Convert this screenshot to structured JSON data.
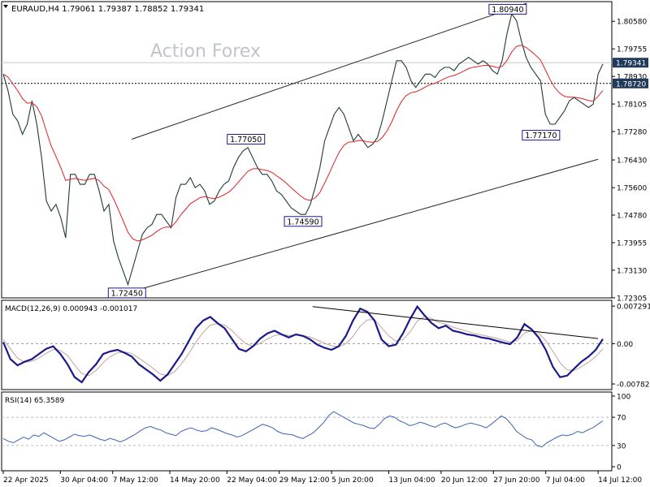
{
  "chart_data": {
    "type": "line",
    "symbol_line": "EURAUD,H4  1.79061 1.79387 1.78852 1.79341",
    "watermark": "Action Forex",
    "colors": {
      "price": "#1f3a3a",
      "ema": "#e02020",
      "macd": "#1a1a8c",
      "signal": "#c8a0a0",
      "rsi": "#3b62b5",
      "label_border": "#1a1a8c",
      "tag_bg": "#1f3a5a",
      "channel": "#222222"
    },
    "price_panel": {
      "ylim": [
        1.7235,
        1.8112
      ],
      "y_ticks": [
        "1.80580",
        "1.79755",
        "1.78930",
        "1.78105",
        "1.77280",
        "1.76430",
        "1.75600",
        "1.74780",
        "1.73955",
        "1.73130",
        "1.72305"
      ],
      "last_price_tag": "1.79341",
      "last_price": 1.79341,
      "reference_level_tag": "1.78720",
      "reference_level": 1.7872,
      "annotations": [
        {
          "label": "1.72450",
          "value": 1.7245,
          "bar": 26
        },
        {
          "label": "1.77050",
          "value": 1.7705,
          "bar": 51
        },
        {
          "label": "1.74590",
          "value": 1.7459,
          "bar": 63
        },
        {
          "label": "1.80940",
          "value": 1.8094,
          "bar": 106
        },
        {
          "label": "1.77170",
          "value": 1.7717,
          "bar": 113
        }
      ],
      "channel_lines": [
        {
          "from": [
            26,
            1.7245
          ],
          "to": [
            125,
            1.7645
          ]
        },
        {
          "from": [
            27,
            1.7705
          ],
          "to": [
            110,
            1.8112
          ]
        }
      ],
      "closes_sampled": [
        1.79,
        1.785,
        1.778,
        1.776,
        1.772,
        1.775,
        1.782,
        1.775,
        1.765,
        1.752,
        1.749,
        1.751,
        1.747,
        1.741,
        1.76,
        1.76,
        1.757,
        1.757,
        1.76,
        1.76,
        1.755,
        1.749,
        1.751,
        1.74,
        1.735,
        1.731,
        1.727,
        1.732,
        1.737,
        1.742,
        1.744,
        1.745,
        1.748,
        1.748,
        1.746,
        1.744,
        1.753,
        1.757,
        1.757,
        1.759,
        1.756,
        1.757,
        1.755,
        1.751,
        1.752,
        1.755,
        1.757,
        1.758,
        1.762,
        1.765,
        1.767,
        1.768,
        1.765,
        1.762,
        1.76,
        1.76,
        1.758,
        1.755,
        1.754,
        1.752,
        1.75,
        1.749,
        1.748,
        1.748,
        1.751,
        1.756,
        1.762,
        1.77,
        1.774,
        1.778,
        1.78,
        1.778,
        1.774,
        1.77,
        1.772,
        1.77,
        1.768,
        1.769,
        1.771,
        1.776,
        1.782,
        1.788,
        1.794,
        1.794,
        1.792,
        1.788,
        1.786,
        1.788,
        1.79,
        1.79,
        1.789,
        1.791,
        1.792,
        1.792,
        1.791,
        1.793,
        1.794,
        1.795,
        1.794,
        1.793,
        1.794,
        1.793,
        1.791,
        1.79,
        1.794,
        1.802,
        1.808,
        1.806,
        1.8,
        1.795,
        1.792,
        1.79,
        1.788,
        1.778,
        1.775,
        1.775,
        1.777,
        1.779,
        1.782,
        1.783,
        1.782,
        1.781,
        1.78,
        1.781,
        1.79,
        1.793
      ]
    },
    "macd_panel": {
      "label": "MACD(12,26,9) 0.000943 -0.001017",
      "ylim": [
        -0.0086,
        0.0081
      ],
      "y_ticks": [
        "0.007291",
        "0.00",
        "-0.00782"
      ],
      "y_tick_values": [
        0.007291,
        0.0,
        -0.00782
      ],
      "macd_sampled": [
        0.0003,
        -0.003,
        -0.0042,
        -0.0035,
        -0.003,
        -0.002,
        -0.001,
        -0.0005,
        -0.002,
        -0.004,
        -0.0065,
        -0.0075,
        -0.0055,
        -0.004,
        -0.002,
        -0.0015,
        -0.0012,
        -0.0018,
        -0.0025,
        -0.004,
        -0.005,
        -0.006,
        -0.0072,
        -0.006,
        -0.004,
        -0.002,
        0.0005,
        0.003,
        0.0045,
        0.0052,
        0.004,
        0.003,
        0.001,
        -0.001,
        -0.0015,
        -0.0005,
        0.001,
        0.002,
        0.0025,
        0.0018,
        0.0012,
        0.0018,
        0.0015,
        0.0008,
        -0.0002,
        -0.0008,
        -0.0012,
        -0.0005,
        0.0015,
        0.0045,
        0.0068,
        0.0062,
        0.0045,
        0.0008,
        -0.0005,
        -0.0002,
        0.002,
        0.0048,
        0.0072,
        0.0055,
        0.004,
        0.003,
        0.0035,
        0.0025,
        0.0022,
        0.0018,
        0.0016,
        0.0012,
        0.001,
        0.0006,
        0.0002,
        -0.0001,
        0.0012,
        0.0038,
        0.0028,
        0.0012,
        -0.0012,
        -0.0045,
        -0.0065,
        -0.0062,
        -0.0048,
        -0.0035,
        -0.0025,
        -0.0012,
        0.0009
      ],
      "signal_sampled": [
        0.0008,
        -0.001,
        -0.0028,
        -0.0036,
        -0.0034,
        -0.0028,
        -0.0019,
        -0.0011,
        -0.0013,
        -0.0023,
        -0.0042,
        -0.0058,
        -0.0062,
        -0.0052,
        -0.0037,
        -0.0025,
        -0.0018,
        -0.0016,
        -0.0019,
        -0.0028,
        -0.0038,
        -0.0048,
        -0.0059,
        -0.0062,
        -0.0054,
        -0.0039,
        -0.0019,
        0.0003,
        0.0022,
        0.0036,
        0.0039,
        0.0036,
        0.0026,
        0.0012,
        0.0,
        -0.0005,
        0.0001,
        0.0009,
        0.0016,
        0.0018,
        0.0016,
        0.0017,
        0.0016,
        0.0013,
        0.0007,
        0.0001,
        -0.0004,
        -0.0006,
        0.0,
        0.0014,
        0.0034,
        0.0046,
        0.0047,
        0.0031,
        0.0015,
        0.0005,
        0.0008,
        0.0023,
        0.0044,
        0.0053,
        0.0049,
        0.0041,
        0.0038,
        0.0032,
        0.0028,
        0.0024,
        0.002,
        0.0017,
        0.0014,
        0.0011,
        0.0007,
        0.0003,
        0.0006,
        0.002,
        0.0025,
        0.002,
        0.0006,
        -0.0015,
        -0.0037,
        -0.0051,
        -0.0052,
        -0.0045,
        -0.0036,
        -0.0025,
        -0.001
      ],
      "divergence_line": {
        "from": [
          65,
          0.0072
        ],
        "to": [
          125,
          0.001
        ]
      }
    },
    "rsi_panel": {
      "label": "RSI(14) 65.3589",
      "ylim": [
        0,
        100
      ],
      "y_ticks": [
        "100",
        "70",
        "30",
        "0"
      ],
      "y_tick_values": [
        100,
        70,
        30,
        0
      ],
      "levels": [
        70,
        30
      ],
      "rsi_sampled": [
        40,
        36,
        34,
        38,
        42,
        39,
        45,
        43,
        48,
        44,
        40,
        36,
        38,
        42,
        46,
        44,
        43,
        45,
        42,
        39,
        37,
        40,
        38,
        35,
        38,
        42,
        46,
        51,
        55,
        57,
        54,
        52,
        48,
        46,
        44,
        50,
        53,
        55,
        52,
        50,
        51,
        55,
        53,
        50,
        47,
        45,
        42,
        44,
        48,
        52,
        56,
        60,
        58,
        55,
        50,
        47,
        46,
        45,
        42,
        40,
        44,
        48,
        55,
        62,
        72,
        78,
        74,
        70,
        66,
        62,
        60,
        58,
        55,
        54,
        60,
        68,
        72,
        70,
        65,
        62,
        58,
        60,
        63,
        61,
        58,
        56,
        60,
        62,
        58,
        55,
        57,
        60,
        62,
        60,
        58,
        55,
        60,
        66,
        72,
        68,
        60,
        50,
        45,
        40,
        38,
        30,
        28,
        34,
        38,
        42,
        45,
        44,
        46,
        50,
        48,
        52,
        55,
        60,
        65
      ],
      "last_rsi": 65.3589
    },
    "x_ticks": [
      {
        "label": "22 Apr 2025",
        "bar": 0
      },
      {
        "label": "30 Apr 04:00",
        "bar": 12
      },
      {
        "label": "7 May 12:00",
        "bar": 23
      },
      {
        "label": "14 May 20:00",
        "bar": 35
      },
      {
        "label": "22 May 04:00",
        "bar": 47
      },
      {
        "label": "29 May 12:00",
        "bar": 58
      },
      {
        "label": "5 Jun 20:00",
        "bar": 69
      },
      {
        "label": "13 Jun 04:00",
        "bar": 81
      },
      {
        "label": "20 Jun 12:00",
        "bar": 92
      },
      {
        "label": "27 Jun 20:00",
        "bar": 103
      },
      {
        "label": "7 Jul 04:00",
        "bar": 114
      },
      {
        "label": "14 Jul 12:00",
        "bar": 125
      }
    ]
  }
}
